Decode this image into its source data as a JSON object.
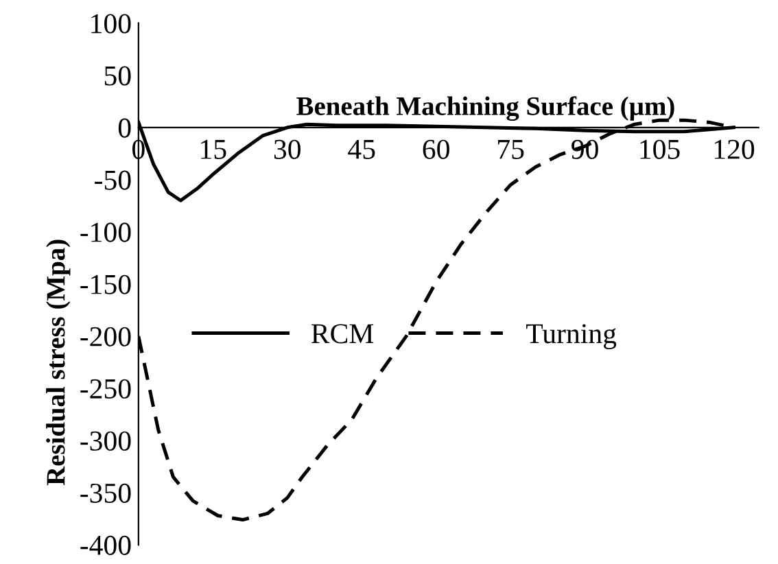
{
  "chart_data": {
    "type": "line",
    "xlabel": "Beneath Machining Surface (µm)",
    "ylabel": "Residual stress (Mpa)",
    "xlim": [
      0,
      125
    ],
    "xticks": [
      0,
      15,
      30,
      45,
      60,
      75,
      90,
      105,
      120
    ],
    "ylim": [
      -400,
      100
    ],
    "yticks": [
      -400,
      -350,
      -300,
      -250,
      -200,
      -150,
      -100,
      -50,
      0,
      50,
      100
    ],
    "grid": false,
    "legend": "center",
    "marker": "none",
    "series": [
      {
        "name": "RCM",
        "color": "#000000",
        "line_style": "solid",
        "x": [
          0,
          3,
          6,
          8.5,
          12,
          15,
          20,
          25,
          30,
          34,
          40,
          50,
          60,
          70,
          80,
          90,
          100,
          110,
          120
        ],
        "values": [
          5,
          -35,
          -62,
          -70,
          -58,
          -45,
          -25,
          -8,
          0,
          3,
          2,
          2,
          1,
          0,
          -1,
          -3,
          -4,
          -4,
          0
        ]
      },
      {
        "name": "Turning",
        "color": "#000000",
        "line_style": "dashed",
        "x": [
          0,
          2,
          4,
          7,
          11,
          16,
          21,
          26,
          30,
          33,
          38,
          43,
          48,
          54,
          60,
          65,
          70,
          75,
          80,
          85,
          90,
          95,
          100,
          105,
          110,
          115,
          120
        ],
        "values": [
          -200,
          -245,
          -290,
          -335,
          -358,
          -372,
          -376,
          -370,
          -355,
          -335,
          -305,
          -280,
          -240,
          -200,
          -148,
          -112,
          -82,
          -55,
          -38,
          -26,
          -18,
          -6,
          3,
          7,
          7,
          5,
          0
        ]
      }
    ]
  }
}
